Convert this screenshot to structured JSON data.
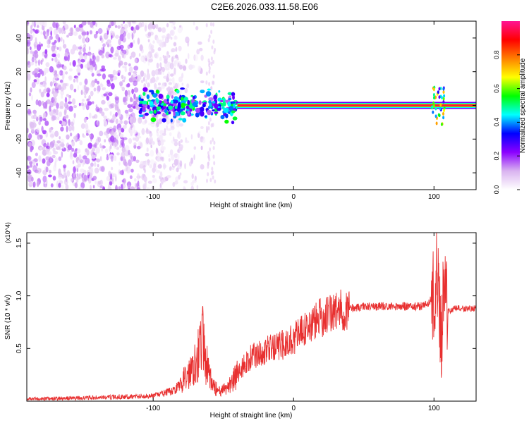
{
  "figure_title": "C2E6.2026.033.11.58.E06",
  "chart_data": [
    {
      "type": "heatmap",
      "name": "spectrogram",
      "title": "C2E6.2026.033.11.58.E06",
      "xlabel": "Height of straight line (km)",
      "ylabel": "Frequency (Hz)",
      "xlim": [
        -190,
        130
      ],
      "ylim": [
        -50,
        50
      ],
      "xticks": [
        -100,
        0,
        100
      ],
      "yticks": [
        -40,
        -20,
        0,
        20,
        40
      ],
      "colorbar": {
        "label": "Normalized spectral amplitude",
        "range": [
          0,
          1
        ],
        "ticks": [
          0.0,
          0.2,
          0.4,
          0.6,
          0.8
        ],
        "tick_labels": [
          "0.0",
          "0.2",
          "0.4",
          "0.6",
          "0.8"
        ],
        "colors": [
          "#ffffff",
          "#d9b3f0",
          "#8b00ff",
          "#0000ff",
          "#00ffff",
          "#00ff00",
          "#ffff00",
          "#ff8000",
          "#ff0000",
          "#ff1493"
        ]
      },
      "features": [
        {
          "desc": "noise",
          "x_range": [
            -190,
            -80
          ],
          "freq_range": [
            -50,
            50
          ],
          "amplitude": 0.1
        },
        {
          "desc": "tone-onset",
          "x_range": [
            -110,
            -40
          ],
          "freq_center": 0,
          "freq_spread": 8,
          "amplitude": 0.35
        },
        {
          "desc": "steady-tone",
          "x_range": [
            -40,
            130
          ],
          "freq_center": 0,
          "amplitude": 0.95
        },
        {
          "desc": "disturbance",
          "x_range": [
            98,
            108
          ],
          "freq_range": [
            -12,
            12
          ],
          "amplitude": 0.5
        }
      ]
    },
    {
      "type": "line",
      "name": "snr",
      "xlabel": "Height of straight line (km)",
      "ylabel": "SNR (10 * v/v)",
      "y_multiplier": "(x10^4)",
      "xlim": [
        -190,
        130
      ],
      "ylim": [
        0,
        1.6
      ],
      "xticks": [
        -100,
        0,
        100
      ],
      "yticks": [
        0.5,
        1.0,
        1.5
      ],
      "ytick_labels": [
        "0.5",
        "1.0",
        "1.5"
      ],
      "color": "#e83030",
      "series": [
        {
          "name": "SNR",
          "x": [
            -190,
            -150,
            -100,
            -85,
            -75,
            -68,
            -65,
            -62,
            -58,
            -52,
            -46,
            -40,
            -35,
            -30,
            -25,
            -20,
            -15,
            -10,
            -5,
            0,
            10,
            20,
            30,
            40,
            50,
            60,
            70,
            80,
            90,
            95,
            100,
            103,
            105,
            107,
            110,
            115,
            120,
            130
          ],
          "y": [
            0.02,
            0.03,
            0.05,
            0.1,
            0.25,
            0.45,
            0.6,
            0.35,
            0.15,
            0.08,
            0.15,
            0.25,
            0.35,
            0.42,
            0.45,
            0.48,
            0.5,
            0.52,
            0.55,
            0.6,
            0.7,
            0.8,
            0.85,
            0.88,
            0.9,
            0.9,
            0.9,
            0.9,
            0.9,
            0.92,
            1.0,
            1.3,
            0.5,
            1.2,
            0.85,
            0.88,
            0.88,
            0.88
          ]
        }
      ]
    }
  ]
}
